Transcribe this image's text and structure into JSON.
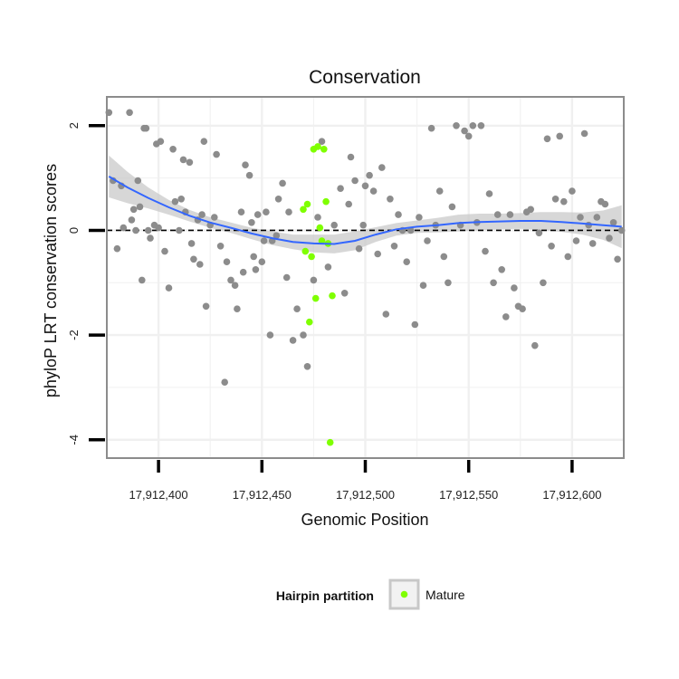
{
  "chart_data": {
    "type": "scatter",
    "title": "Conservation",
    "xlabel": "Genomic Position",
    "ylabel": "phyloP LRT conservation scores",
    "xlim": [
      17912375,
      17912625
    ],
    "ylim": [
      -4.35,
      2.55
    ],
    "x_ticks": [
      17912400,
      17912450,
      17912500,
      17912550,
      17912600
    ],
    "x_tick_labels": [
      "17,912,400",
      "17,912,450",
      "17,912,500",
      "17,912,550",
      "17,912,600"
    ],
    "y_ticks": [
      -4,
      -2,
      0,
      2
    ],
    "y_tick_labels": [
      "-4",
      "-2",
      "0",
      "2"
    ],
    "grid": true,
    "reference_line": {
      "y": 0,
      "style": "dashed",
      "color": "#000000"
    },
    "colors": {
      "background_points": "#8c8c8c",
      "mature_points": "#7fff00",
      "smooth_line": "#3366ff",
      "confidence_band": "#c9c9c9",
      "grid": "#f0f0f0",
      "panel_border": "#8c8c8c"
    },
    "legend": {
      "title": "Hairpin partition",
      "placement": "bottom",
      "entries": [
        {
          "label": "Mature",
          "color": "#7fff00"
        }
      ]
    },
    "series": [
      {
        "color": "#8c8c8c",
        "x": [
          17912376,
          17912378,
          17912380,
          17912382,
          17912383,
          17912386,
          17912387,
          17912388,
          17912389,
          17912390,
          17912391,
          17912392,
          17912393,
          17912394,
          17912395,
          17912396,
          17912398,
          17912399,
          17912400,
          17912401,
          17912403,
          17912405,
          17912407,
          17912408,
          17912410,
          17912411,
          17912412,
          17912413,
          17912415,
          17912416,
          17912417,
          17912419,
          17912420,
          17912421,
          17912422,
          17912423,
          17912425,
          17912427,
          17912428,
          17912430,
          17912432,
          17912433,
          17912435,
          17912437,
          17912438,
          17912440,
          17912441,
          17912442,
          17912444,
          17912445,
          17912446,
          17912447,
          17912448,
          17912450,
          17912451,
          17912452,
          17912454,
          17912455,
          17912457,
          17912458,
          17912460,
          17912462,
          17912463,
          17912465,
          17912467,
          17912470,
          17912472,
          17912475,
          17912477,
          17912479,
          17912482,
          17912485,
          17912488,
          17912490,
          17912492,
          17912493,
          17912495,
          17912497,
          17912499,
          17912500,
          17912502,
          17912504,
          17912506,
          17912508,
          17912510,
          17912512,
          17912514,
          17912516,
          17912518,
          17912520,
          17912522,
          17912524,
          17912526,
          17912528,
          17912530,
          17912532,
          17912534,
          17912536,
          17912538,
          17912540,
          17912542,
          17912544,
          17912546,
          17912548,
          17912550,
          17912552,
          17912554,
          17912556,
          17912558,
          17912560,
          17912562,
          17912564,
          17912566,
          17912568,
          17912570,
          17912572,
          17912574,
          17912576,
          17912578,
          17912580,
          17912582,
          17912584,
          17912586,
          17912588,
          17912590,
          17912592,
          17912594,
          17912596,
          17912598,
          17912600,
          17912602,
          17912604,
          17912606,
          17912608,
          17912610,
          17912612,
          17912614,
          17912616,
          17912618,
          17912620,
          17912622,
          17912624
        ],
        "y": [
          2.25,
          0.95,
          -0.35,
          0.85,
          0.05,
          2.25,
          0.2,
          0.4,
          0.0,
          0.95,
          0.45,
          -0.95,
          1.95,
          1.95,
          0.0,
          -0.15,
          0.1,
          1.65,
          0.05,
          1.7,
          -0.4,
          -1.1,
          1.55,
          0.55,
          0.0,
          0.6,
          1.35,
          0.35,
          1.3,
          -0.25,
          -0.55,
          0.2,
          -0.65,
          0.3,
          1.7,
          -1.45,
          0.1,
          0.25,
          1.45,
          -0.3,
          -2.9,
          -0.6,
          -0.95,
          -1.05,
          -1.5,
          0.35,
          -0.8,
          1.25,
          1.05,
          0.15,
          -0.5,
          -0.75,
          0.3,
          -0.6,
          -0.2,
          0.35,
          -2.0,
          -0.2,
          -0.1,
          0.6,
          0.9,
          -0.9,
          0.35,
          -2.1,
          -1.5,
          -2.0,
          -2.6,
          -0.95,
          0.25,
          1.7,
          -0.7,
          0.1,
          0.8,
          -1.2,
          0.5,
          1.4,
          0.95,
          -0.35,
          0.1,
          0.85,
          1.05,
          0.75,
          -0.45,
          1.2,
          -1.6,
          0.6,
          -0.3,
          0.3,
          0.0,
          -0.6,
          0.0,
          -1.8,
          0.25,
          -1.05,
          -0.2,
          1.95,
          0.1,
          0.75,
          -0.5,
          -1.0,
          0.45,
          2.0,
          0.1,
          1.9,
          1.8,
          2.0,
          0.15,
          2.0,
          -0.4,
          0.7,
          -1.0,
          0.3,
          -0.75,
          -1.65,
          0.3,
          -1.1,
          -1.45,
          -1.5,
          0.35,
          0.4,
          -2.2,
          -0.05,
          -1.0,
          1.75,
          -0.3,
          0.6,
          1.8,
          0.55,
          -0.5,
          0.75,
          -0.2,
          0.25,
          1.85,
          0.1,
          -0.25,
          0.25,
          0.55,
          0.5,
          -0.15,
          0.15,
          -0.55,
          0.0
        ]
      },
      {
        "name": "Mature",
        "color": "#7fff00",
        "x": [
          17912470,
          17912471,
          17912472,
          17912473,
          17912474,
          17912475,
          17912476,
          17912477,
          17912478,
          17912479,
          17912480,
          17912481,
          17912482,
          17912483,
          17912484
        ],
        "y": [
          0.4,
          -0.4,
          0.5,
          -1.75,
          -0.5,
          1.55,
          -1.3,
          1.6,
          0.05,
          -0.2,
          1.55,
          0.55,
          -0.25,
          -4.05,
          -1.25
        ]
      }
    ],
    "smooth": {
      "x": [
        17912376,
        17912385,
        17912395,
        17912405,
        17912415,
        17912425,
        17912435,
        17912445,
        17912455,
        17912465,
        17912475,
        17912485,
        17912495,
        17912505,
        17912515,
        17912525,
        17912535,
        17912545,
        17912555,
        17912565,
        17912575,
        17912585,
        17912595,
        17912605,
        17912615,
        17912624
      ],
      "y": [
        1.03,
        0.82,
        0.62,
        0.44,
        0.28,
        0.15,
        0.05,
        -0.06,
        -0.15,
        -0.22,
        -0.25,
        -0.26,
        -0.2,
        -0.08,
        0.02,
        0.07,
        0.1,
        0.14,
        0.16,
        0.17,
        0.18,
        0.18,
        0.16,
        0.13,
        0.1,
        0.07
      ],
      "lower": [
        0.63,
        0.52,
        0.42,
        0.3,
        0.17,
        0.05,
        -0.05,
        -0.17,
        -0.28,
        -0.36,
        -0.42,
        -0.44,
        -0.38,
        -0.22,
        -0.1,
        -0.05,
        -0.04,
        -0.02,
        0.0,
        0.02,
        0.03,
        0.01,
        -0.03,
        -0.08,
        -0.18,
        -0.34
      ],
      "upper": [
        1.43,
        1.12,
        0.82,
        0.58,
        0.39,
        0.25,
        0.15,
        0.05,
        -0.02,
        -0.08,
        -0.08,
        -0.08,
        -0.02,
        0.06,
        0.14,
        0.19,
        0.24,
        0.3,
        0.32,
        0.32,
        0.33,
        0.35,
        0.35,
        0.34,
        0.38,
        0.48
      ]
    }
  }
}
